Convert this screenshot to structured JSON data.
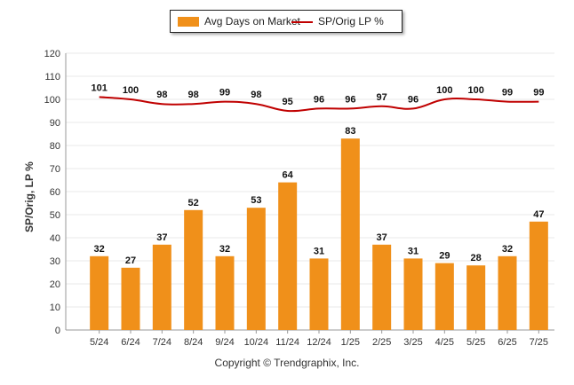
{
  "colors": {
    "bar": "#F0901A",
    "line": "#C00000",
    "grid": "#e8e8e8",
    "axis": "#999999"
  },
  "chart_data": {
    "type": "bar",
    "categories": [
      "5/24",
      "6/24",
      "7/24",
      "8/24",
      "9/24",
      "10/24",
      "11/24",
      "12/24",
      "1/25",
      "2/25",
      "3/25",
      "4/25",
      "5/25",
      "6/25",
      "7/25"
    ],
    "series": [
      {
        "name": "Avg Days on Market",
        "type": "bar",
        "values": [
          32,
          27,
          37,
          52,
          32,
          53,
          64,
          31,
          83,
          37,
          31,
          29,
          28,
          32,
          47
        ]
      },
      {
        "name": "SP/Orig LP %",
        "type": "line",
        "values": [
          101,
          100,
          98,
          98,
          99,
          98,
          95,
          96,
          96,
          97,
          96,
          100,
          100,
          99,
          99
        ]
      }
    ],
    "ylabel": "SP/Orig, LP %",
    "ylim": [
      0,
      120
    ],
    "yticks": [
      0,
      10,
      20,
      30,
      40,
      50,
      60,
      70,
      80,
      90,
      100,
      110,
      120
    ],
    "grid": true,
    "legend": "top"
  },
  "footer": {
    "copyright": "Copyright © Trendgraphix, Inc."
  }
}
